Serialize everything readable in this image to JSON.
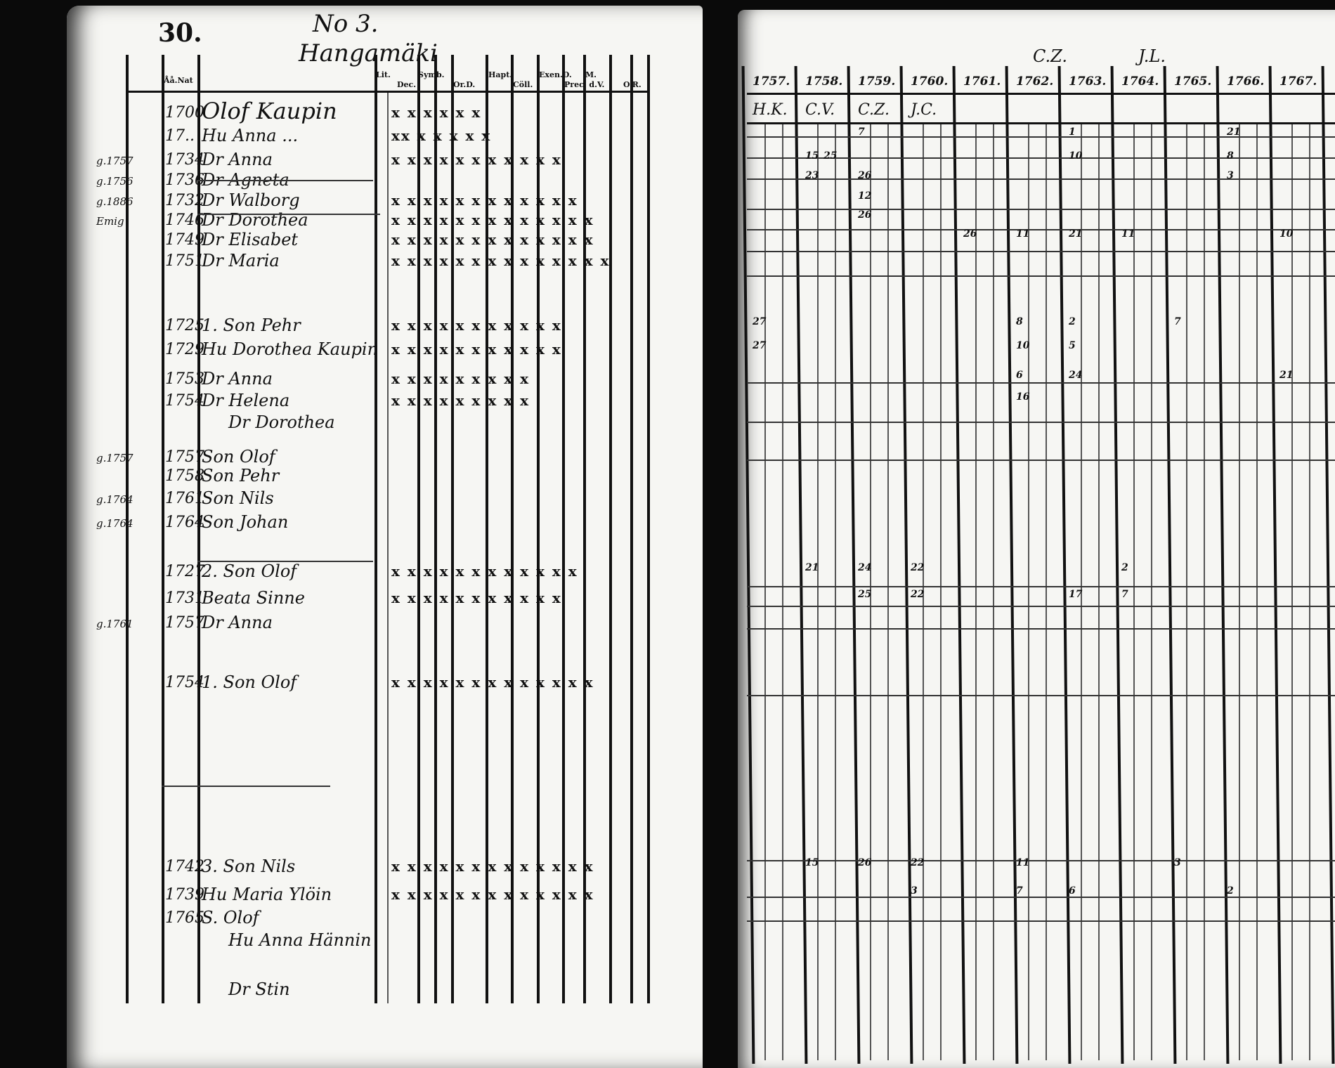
{
  "left_page": {
    "page_number": "30.",
    "title": "No 3.",
    "village": "Hangamäki",
    "column_headers": [
      "Åå.Nat",
      "Lit.",
      "Dec.",
      "Symb.",
      "Or.D.",
      "Hapt.",
      "Cöll.",
      "Exen.D.",
      "Prec. d.V.",
      "M.",
      "O.R."
    ],
    "rows": [
      {
        "margin": "",
        "year": "1700",
        "name": "Olof Kaupin",
        "marks": "x x x x x x"
      },
      {
        "margin": "",
        "year": "17..",
        "name": "Hu Anna ...",
        "marks": "xx x x x x x"
      },
      {
        "margin": "g.1757",
        "year": "1734",
        "name": "Dr Anna",
        "marks": "x x x x x x x x x x x"
      },
      {
        "margin": "g.1756",
        "year": "1736",
        "name": "Dr Agneta",
        "marks": ""
      },
      {
        "margin": "g.1886",
        "year": "1732",
        "name": "Dr Walborg",
        "marks": "x x x x x x x x x x x x"
      },
      {
        "margin": "Emig",
        "year": "1746",
        "name": "Dr Dorothea",
        "marks": "x x x x x x x x x x x x x"
      },
      {
        "margin": "",
        "year": "1749",
        "name": "Dr Elisabet",
        "marks": "x x x x x x x x x x x x x"
      },
      {
        "margin": "",
        "year": "1751",
        "name": "Dr Maria",
        "marks": "x x x x x x x x x x x x x x"
      },
      {
        "margin": "",
        "year": "1725",
        "name": "1. Son Pehr",
        "marks": "x x x x x x x x x x x"
      },
      {
        "margin": "",
        "year": "1729",
        "name": "Hu Dorothea Kaupin",
        "marks": "x x x x x x x x x x x"
      },
      {
        "margin": "",
        "year": "1753",
        "name": "Dr Anna",
        "marks": "x x x x x x x x x"
      },
      {
        "margin": "",
        "year": "1754",
        "name": "Dr Helena",
        "marks": "x x x x x x x x x"
      },
      {
        "margin": "",
        "year": "",
        "name": "Dr Dorothea",
        "marks": ""
      },
      {
        "margin": "g.1757",
        "year": "1757",
        "name": "Son Olof",
        "marks": ""
      },
      {
        "margin": "",
        "year": "1758",
        "name": "Son Pehr",
        "marks": ""
      },
      {
        "margin": "g.1764",
        "year": "1761",
        "name": "Son Nils",
        "marks": ""
      },
      {
        "margin": "g.1764",
        "year": "1764",
        "name": "Son Johan",
        "marks": ""
      },
      {
        "margin": "",
        "year": "1727",
        "name": "2. Son Olof",
        "marks": "x x x x x x x x x x x x"
      },
      {
        "margin": "",
        "year": "1731",
        "name": "Beata Sinne",
        "marks": "x x x x x x x x x x x"
      },
      {
        "margin": "g.1761",
        "year": "1757",
        "name": "Dr Anna",
        "marks": ""
      },
      {
        "margin": "",
        "year": "1754",
        "name": "1. Son Olof",
        "marks": "x x x x x x x x x x x x x"
      },
      {
        "margin": "",
        "year": "1742",
        "name": "3. Son Nils",
        "marks": "x x x x x x x x x x x x x"
      },
      {
        "margin": "",
        "year": "1739",
        "name": "Hu Maria Ylöin",
        "marks": "x x x x x x x x x x x x x"
      },
      {
        "margin": "",
        "year": "1765",
        "name": "S. Olof",
        "marks": ""
      },
      {
        "margin": "",
        "year": "",
        "name": "Hu Anna Hännin",
        "marks": ""
      },
      {
        "margin": "",
        "year": "",
        "name": "Dr Stin",
        "marks": ""
      }
    ]
  },
  "right_page": {
    "annotations": [
      "C.Z.",
      "J.L."
    ],
    "years": [
      "1757.",
      "1758.",
      "1759.",
      "1760.",
      "1761.",
      "1762.",
      "1763.",
      "1764.",
      "1765.",
      "1766.",
      "1767."
    ],
    "subheaders": [
      "H.K.",
      "C.V.",
      "C.Z.",
      "J.C."
    ],
    "entries": [
      {
        "row": 1,
        "year": "1759.",
        "text": "7"
      },
      {
        "row": 1,
        "year": "1763.",
        "text": "1"
      },
      {
        "row": 1,
        "year": "1766.",
        "text": "21"
      },
      {
        "row": 2,
        "year": "1758.",
        "text": "15"
      },
      {
        "row": 2,
        "year": "1758.",
        "text": "25"
      },
      {
        "row": 2,
        "year": "1763.",
        "text": "10"
      },
      {
        "row": 2,
        "year": "1766.",
        "text": "8"
      },
      {
        "row": 3,
        "year": "1758.",
        "text": "23"
      },
      {
        "row": 3,
        "year": "1759.",
        "text": "26"
      },
      {
        "row": 3,
        "year": "1766.",
        "text": "3"
      },
      {
        "row": 4,
        "year": "1759.",
        "text": "12"
      },
      {
        "row": 5,
        "year": "1759.",
        "text": "26"
      },
      {
        "row": 6,
        "year": "1761.",
        "text": "26"
      },
      {
        "row": 6,
        "year": "1762.",
        "text": "11"
      },
      {
        "row": 6,
        "year": "1763.",
        "text": "21"
      },
      {
        "row": 6,
        "year": "1764.",
        "text": "11"
      },
      {
        "row": 6,
        "year": "1767.",
        "text": "10"
      },
      {
        "row": 8,
        "year": "1757.",
        "text": "27"
      },
      {
        "row": 8,
        "year": "1762.",
        "text": "8"
      },
      {
        "row": 8,
        "year": "1763.",
        "text": "2"
      },
      {
        "row": 8,
        "year": "1765.",
        "text": "7"
      },
      {
        "row": 9,
        "year": "1757.",
        "text": "27"
      },
      {
        "row": 9,
        "year": "1762.",
        "text": "10"
      },
      {
        "row": 9,
        "year": "1763.",
        "text": "5"
      },
      {
        "row": 10,
        "year": "1762.",
        "text": "6"
      },
      {
        "row": 10,
        "year": "1763.",
        "text": "24"
      },
      {
        "row": 10,
        "year": "1767.",
        "text": "21"
      },
      {
        "row": 11,
        "year": "1762.",
        "text": "16"
      },
      {
        "row": 17,
        "year": "1758.",
        "text": "21"
      },
      {
        "row": 17,
        "year": "1759.",
        "text": "24"
      },
      {
        "row": 17,
        "year": "1760.",
        "text": "22"
      },
      {
        "row": 17,
        "year": "1764.",
        "text": "2"
      },
      {
        "row": 18,
        "year": "1759.",
        "text": "25"
      },
      {
        "row": 18,
        "year": "1760.",
        "text": "22"
      },
      {
        "row": 18,
        "year": "1763.",
        "text": "17"
      },
      {
        "row": 18,
        "year": "1764.",
        "text": "7"
      },
      {
        "row": 21,
        "year": "1758.",
        "text": "15"
      },
      {
        "row": 21,
        "year": "1759.",
        "text": "26"
      },
      {
        "row": 21,
        "year": "1760.",
        "text": "22"
      },
      {
        "row": 21,
        "year": "1762.",
        "text": "11"
      },
      {
        "row": 21,
        "year": "1765.",
        "text": "3"
      },
      {
        "row": 22,
        "year": "1760.",
        "text": "3"
      },
      {
        "row": 22,
        "year": "1762.",
        "text": "7"
      },
      {
        "row": 22,
        "year": "1763.",
        "text": "6"
      },
      {
        "row": 22,
        "year": "1766.",
        "text": "2"
      }
    ]
  }
}
